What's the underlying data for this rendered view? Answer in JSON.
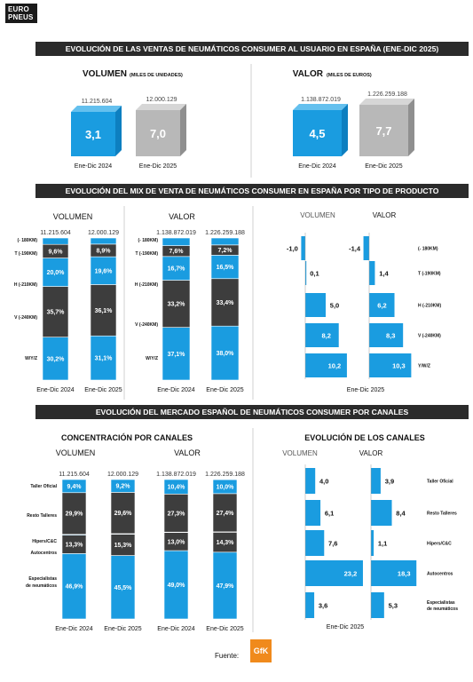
{
  "brand": {
    "logo": "EURO PNEUS",
    "logo_line1": "EURO",
    "logo_line2": "PNEUS"
  },
  "colors": {
    "blue": "#1a9ce0",
    "dark": "#3d3d3d",
    "gray": "#b8b8b8",
    "banner": "#2b2b2b",
    "gfk": "#f08a1c"
  },
  "sections": {
    "s1_title": "EVOLUCIÓN DE LAS VENTAS DE NEUMÁTICOS CONSUMER AL USUARIO EN ESPAÑA (ENE-DIC 2025)",
    "s2_title": "EVOLUCIÓN DEL MIX DE VENTA DE NEUMÁTICOS CONSUMER EN ESPAÑA POR TIPO DE PRODUCTO",
    "s3_title": "EVOLUCIÓN DEL MERCADO ESPAÑOL DE NEUMÁTICOS CONSUMER POR CANALES"
  },
  "footer": {
    "source_label": "Fuente:",
    "source_logo": "GfK"
  },
  "chart_data": [
    {
      "type": "bar",
      "title": "VOLUMEN",
      "subtitle": "(MILES DE UNIDADES)",
      "categories": [
        "Ene-Dic 2024",
        "Ene-Dic 2025"
      ],
      "values": [
        11215604,
        12000129
      ],
      "value_labels": [
        "11.215.604",
        "12.000.129"
      ],
      "bar_labels": [
        "3,1",
        "7,0"
      ]
    },
    {
      "type": "bar",
      "title": "VALOR",
      "subtitle": "(MILES DE EUROS)",
      "categories": [
        "Ene-Dic 2024",
        "Ene-Dic 2025"
      ],
      "values": [
        1138872019,
        1226259188
      ],
      "value_labels": [
        "1.138.872.019",
        "1.226.259.188"
      ],
      "bar_labels": [
        "4,5",
        "7,7"
      ]
    },
    {
      "type": "bar",
      "stacked": true,
      "title": "VOLUMEN",
      "categories": [
        "Ene-Dic 2024",
        "Ene-Dic 2025"
      ],
      "totals": [
        "11.215.604",
        "12.000.129"
      ],
      "segment_labels": [
        "W/Y/Z",
        "V (-240KM)",
        "H (-210KM)",
        "T (-190KM)",
        "(- 180KM)"
      ],
      "series": [
        {
          "name": "W/Y/Z",
          "values": [
            30.2,
            31.1
          ],
          "labels": [
            "30,2%",
            "31,1%"
          ]
        },
        {
          "name": "V (-240KM)",
          "values": [
            35.7,
            36.1
          ],
          "labels": [
            "35,7%",
            "36,1%"
          ]
        },
        {
          "name": "H (-210KM)",
          "values": [
            20.0,
            19.6
          ],
          "labels": [
            "20,0%",
            "19,6%"
          ]
        },
        {
          "name": "T (-190KM)",
          "values": [
            9.6,
            8.9
          ],
          "labels": [
            "9,6%",
            "8,9%"
          ]
        },
        {
          "name": "(- 180KM)",
          "values": [
            4.5,
            4.3
          ],
          "labels": [
            "",
            ""
          ]
        }
      ]
    },
    {
      "type": "bar",
      "stacked": true,
      "title": "VALOR",
      "categories": [
        "Ene-Dic 2024",
        "Ene-Dic 2025"
      ],
      "totals": [
        "1.138.872.019",
        "1.226.259.188"
      ],
      "segment_labels": [
        "W/Y/Z",
        "V (-240KM)",
        "H (-210KM)",
        "T (-190KM)",
        "(- 180KM)"
      ],
      "series": [
        {
          "name": "W/Y/Z",
          "values": [
            37.1,
            38.0
          ],
          "labels": [
            "37,1%",
            "38,0%"
          ]
        },
        {
          "name": "V (-240KM)",
          "values": [
            33.2,
            33.4
          ],
          "labels": [
            "33,2%",
            "33,4%"
          ]
        },
        {
          "name": "H (-210KM)",
          "values": [
            16.7,
            16.5
          ],
          "labels": [
            "16,7%",
            "16,5%"
          ]
        },
        {
          "name": "T (-190KM)",
          "values": [
            7.6,
            7.2
          ],
          "labels": [
            "7,6%",
            "7,2%"
          ]
        },
        {
          "name": "(- 180KM)",
          "values": [
            5.4,
            4.9
          ],
          "labels": [
            "",
            ""
          ]
        }
      ]
    },
    {
      "type": "bar",
      "orientation": "horizontal",
      "period": "Ene-Dic 2025",
      "col_titles": [
        "VOLUMEN",
        "VALOR"
      ],
      "categories": [
        "(- 180KM)",
        "T (-190KM)",
        "H (-210KM)",
        "V (-240KM)",
        "Y/W/Z"
      ],
      "series": [
        {
          "name": "VOLUMEN",
          "values": [
            -1.0,
            0.1,
            5.0,
            8.2,
            10.2
          ],
          "labels": [
            "-1,0",
            "0,1",
            "5,0",
            "8,2",
            "10,2"
          ]
        },
        {
          "name": "VALOR",
          "values": [
            -1.4,
            1.4,
            6.2,
            8.3,
            10.3
          ],
          "labels": [
            "-1,4",
            "1,4",
            "6,2",
            "8,3",
            "10,3"
          ]
        }
      ]
    },
    {
      "type": "bar",
      "stacked": true,
      "title": "CONCENTRACIÓN POR CANALES",
      "col_titles": [
        "VOLUMEN",
        "VALOR"
      ],
      "categories": [
        "Ene-Dic 2024",
        "Ene-Dic 2025",
        "Ene-Dic 2024",
        "Ene-Dic 2025"
      ],
      "totals": [
        "11.215.604",
        "12.000.129",
        "1.138.872.019",
        "1.226.259.188"
      ],
      "segment_labels": [
        "Especialistas de neumáticos",
        "Autocentros",
        "Hipers/C&C",
        "Resto Talleres",
        "Taller Oficial"
      ],
      "series": [
        {
          "name": "Especialistas de neumáticos",
          "values": [
            46.9,
            45.5,
            49.0,
            47.9
          ],
          "labels": [
            "46,9%",
            "45,5%",
            "49,0%",
            "47,9%"
          ]
        },
        {
          "name": "Autocentros",
          "values": [
            13.3,
            15.3,
            13.0,
            14.3
          ],
          "labels": [
            "13,3%",
            "15,3%",
            "13,0%",
            "14,3%"
          ]
        },
        {
          "name": "Hipers/C&C",
          "values": [
            0.5,
            0.4,
            0.3,
            0.3
          ],
          "labels": [
            "",
            "",
            "",
            ""
          ]
        },
        {
          "name": "Resto Talleres",
          "values": [
            29.9,
            29.6,
            27.3,
            27.4
          ],
          "labels": [
            "29,9%",
            "29,6%",
            "27,3%",
            "27,4%"
          ]
        },
        {
          "name": "Taller Oficial",
          "values": [
            9.4,
            9.2,
            10.4,
            10.0
          ],
          "labels": [
            "9,4%",
            "9,2%",
            "10,4%",
            "10,0%"
          ]
        }
      ]
    },
    {
      "type": "bar",
      "orientation": "horizontal",
      "title": "EVOLUCIÓN DE LOS CANALES",
      "period": "Ene-Dic 2025",
      "col_titles": [
        "VOLUMEN",
        "VALOR"
      ],
      "categories": [
        "Taller Oficial",
        "Resto Talleres",
        "Hipers/C&C",
        "Autocentros",
        "Especialistas de neumáticos"
      ],
      "series": [
        {
          "name": "VOLUMEN",
          "values": [
            4.0,
            6.1,
            7.6,
            23.2,
            3.6
          ],
          "labels": [
            "4,0",
            "6,1",
            "7,6",
            "23,2",
            "3,6"
          ]
        },
        {
          "name": "VALOR",
          "values": [
            3.9,
            8.4,
            1.1,
            18.3,
            5.3
          ],
          "labels": [
            "3,9",
            "8,4",
            "1,1",
            "18,3",
            "5,3"
          ]
        }
      ]
    }
  ]
}
